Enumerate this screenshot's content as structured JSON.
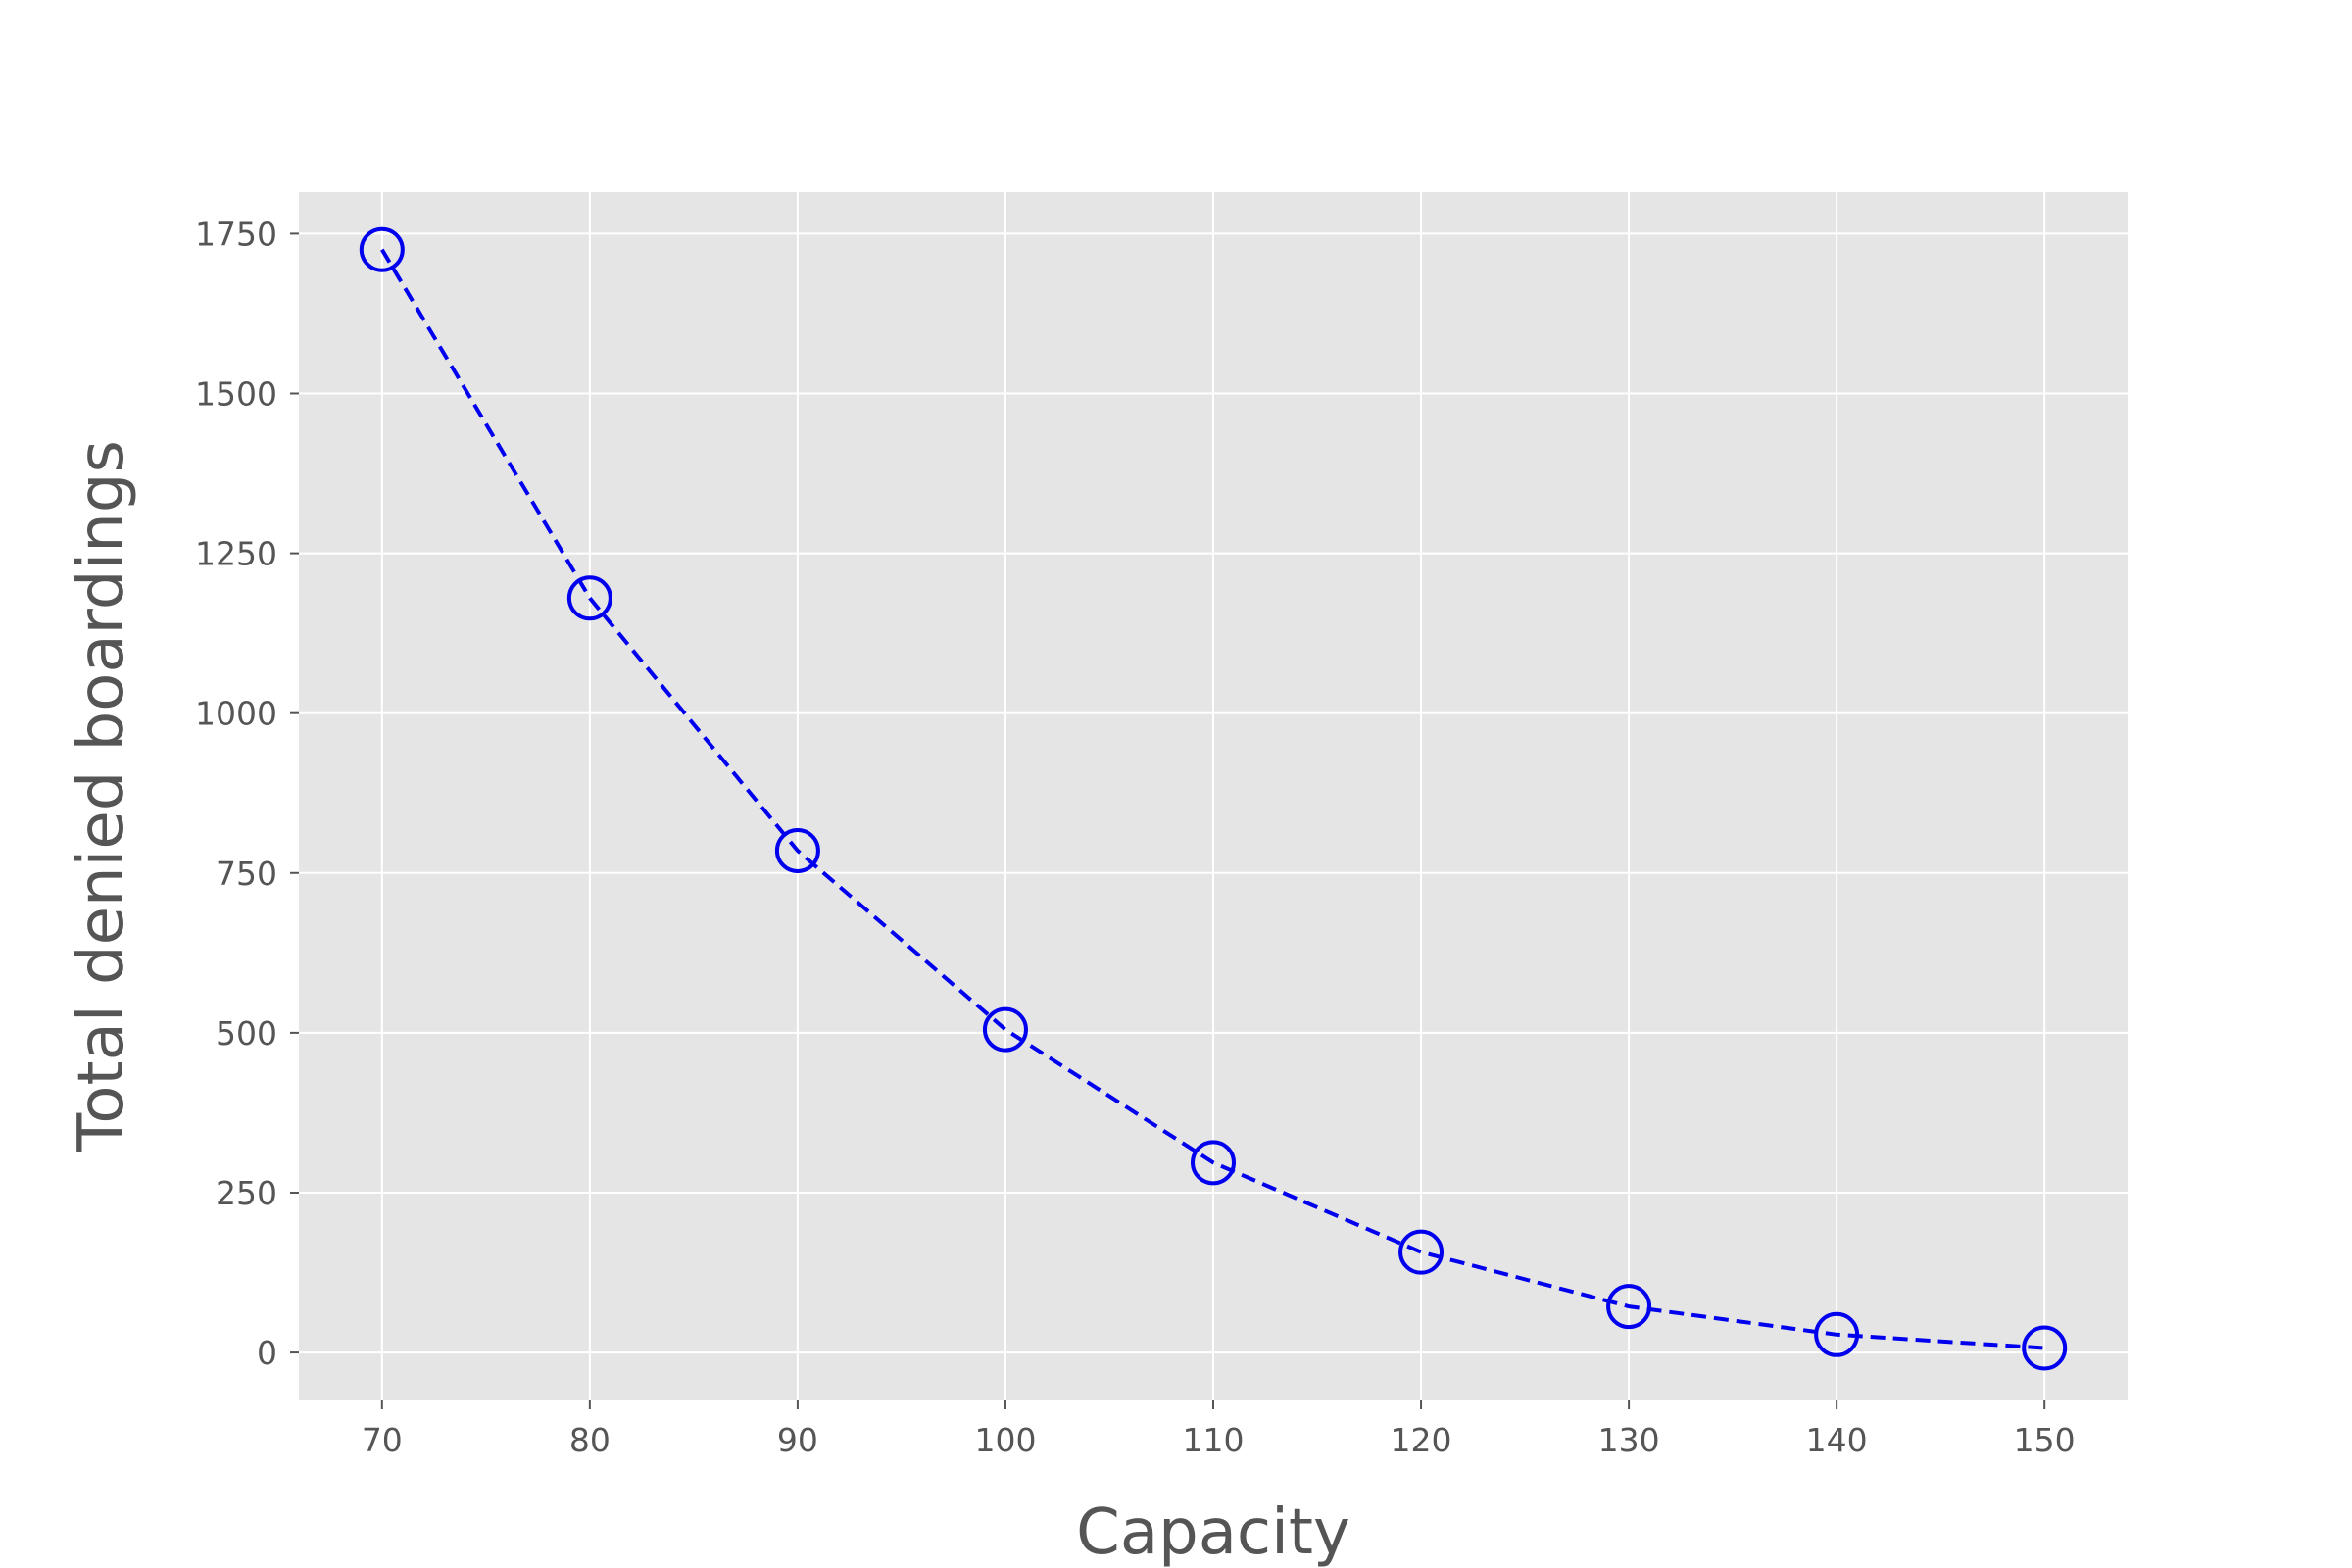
{
  "chart_data": {
    "type": "line",
    "title": "",
    "xlabel": "Capacity",
    "ylabel": "Total denied boardings",
    "x": [
      70,
      80,
      90,
      100,
      110,
      120,
      130,
      140,
      150
    ],
    "series": [
      {
        "values": [
          1725,
          1180,
          785,
          505,
          297,
          157,
          72,
          28,
          7
        ],
        "color": "#0000ee",
        "line_style": "dashed",
        "marker": "open-circle"
      }
    ],
    "xlim": [
      66,
      154
    ],
    "ylim": [
      -75,
      1815
    ],
    "xticks": [
      70,
      80,
      90,
      100,
      110,
      120,
      130,
      140,
      150
    ],
    "yticks": [
      0,
      250,
      500,
      750,
      1000,
      1250,
      1500,
      1750
    ],
    "grid": true,
    "legend": "none",
    "background_color": "#e5e5e5",
    "grid_color": "#ffffff"
  }
}
